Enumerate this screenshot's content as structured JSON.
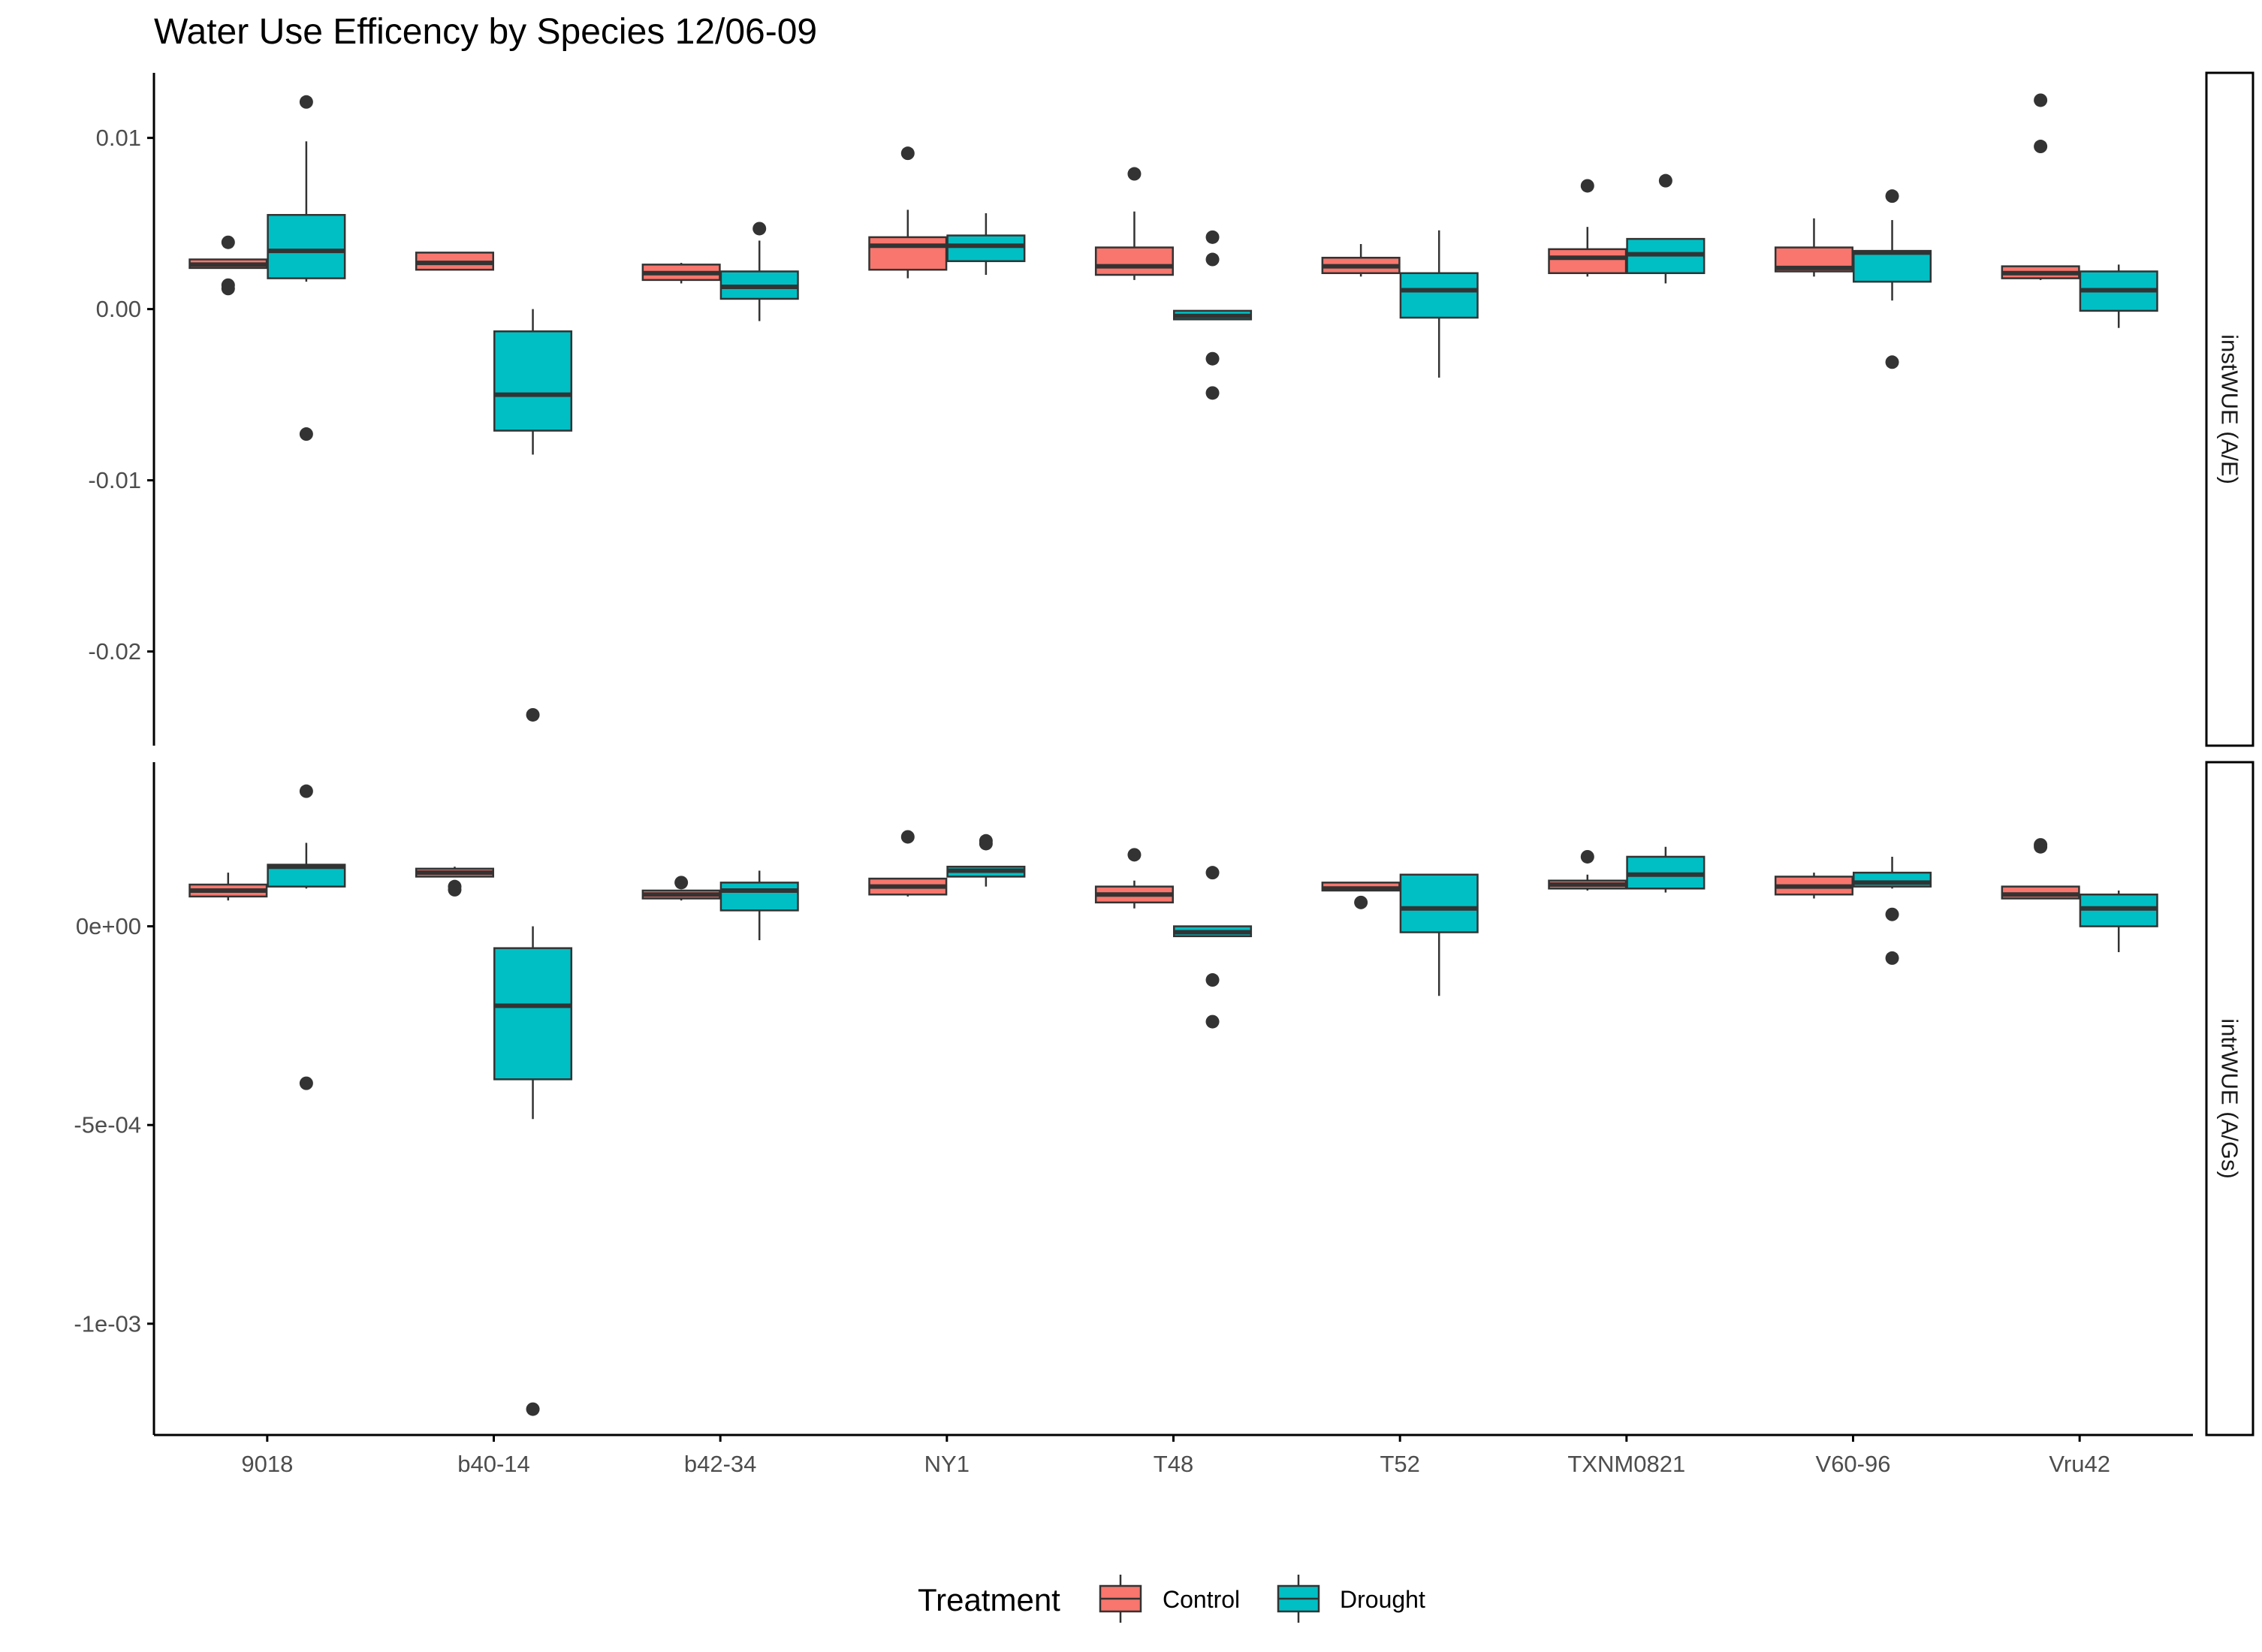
{
  "chart_data": {
    "type": "box",
    "title": "Water Use Efficency by Species 12/06-09",
    "xlabel": "",
    "ylabel": "",
    "categories": [
      "9018",
      "b40-14",
      "b42-34",
      "NY1",
      "T48",
      "T52",
      "TXNM0821",
      "V60-96",
      "Vru42"
    ],
    "legend": {
      "title": "Treatment",
      "position": "bottom",
      "entries": [
        {
          "name": "Control",
          "color": "#F8766D"
        },
        {
          "name": "Drought",
          "color": "#00BFC4"
        }
      ]
    },
    "grid": false,
    "panels": [
      {
        "strip": "instWUE (A/E)",
        "ylim": [
          -0.0255,
          0.0138
        ],
        "y_ticks": [
          {
            "value": 0.01,
            "label": "0.01"
          },
          {
            "value": 0.0,
            "label": "0.00"
          },
          {
            "value": -0.01,
            "label": "-0.01"
          },
          {
            "value": -0.02,
            "label": "-0.02"
          }
        ],
        "series": [
          {
            "name": "Control",
            "boxes": [
              {
                "category": "9018",
                "q1": 0.0024,
                "median": 0.0026,
                "q3": 0.0029,
                "whisker_low": 0.0024,
                "whisker_high": 0.0029,
                "outliers": [
                  0.0039,
                  0.0014,
                  0.0012
                ]
              },
              {
                "category": "b40-14",
                "q1": 0.0023,
                "median": 0.0027,
                "q3": 0.0033,
                "whisker_low": 0.0023,
                "whisker_high": 0.0033,
                "outliers": []
              },
              {
                "category": "b42-34",
                "q1": 0.0017,
                "median": 0.0021,
                "q3": 0.0026,
                "whisker_low": 0.0015,
                "whisker_high": 0.0027,
                "outliers": []
              },
              {
                "category": "NY1",
                "q1": 0.0023,
                "median": 0.0037,
                "q3": 0.0042,
                "whisker_low": 0.0018,
                "whisker_high": 0.0058,
                "outliers": [
                  0.0091
                ]
              },
              {
                "category": "T48",
                "q1": 0.002,
                "median": 0.0025,
                "q3": 0.0036,
                "whisker_low": 0.0017,
                "whisker_high": 0.0057,
                "outliers": [
                  0.0079
                ]
              },
              {
                "category": "T52",
                "q1": 0.0021,
                "median": 0.0025,
                "q3": 0.003,
                "whisker_low": 0.0019,
                "whisker_high": 0.0038,
                "outliers": []
              },
              {
                "category": "TXNM0821",
                "q1": 0.0021,
                "median": 0.003,
                "q3": 0.0035,
                "whisker_low": 0.0019,
                "whisker_high": 0.0048,
                "outliers": [
                  0.0072
                ]
              },
              {
                "category": "V60-96",
                "q1": 0.0022,
                "median": 0.0024,
                "q3": 0.0036,
                "whisker_low": 0.0019,
                "whisker_high": 0.0053,
                "outliers": []
              },
              {
                "category": "Vru42",
                "q1": 0.0018,
                "median": 0.0021,
                "q3": 0.0025,
                "whisker_low": 0.0017,
                "whisker_high": 0.0025,
                "outliers": [
                  0.0122,
                  0.0095
                ]
              }
            ]
          },
          {
            "name": "Drought",
            "boxes": [
              {
                "category": "9018",
                "q1": 0.0018,
                "median": 0.0034,
                "q3": 0.0055,
                "whisker_low": 0.0016,
                "whisker_high": 0.0098,
                "outliers": [
                  0.0121,
                  -0.0073
                ]
              },
              {
                "category": "b40-14",
                "q1": -0.0071,
                "median": -0.005,
                "q3": -0.0013,
                "whisker_low": -0.0085,
                "whisker_high": 0.0,
                "outliers": [
                  -0.0237
                ]
              },
              {
                "category": "b42-34",
                "q1": 0.0006,
                "median": 0.0013,
                "q3": 0.0022,
                "whisker_low": -0.0007,
                "whisker_high": 0.004,
                "outliers": [
                  0.0047
                ]
              },
              {
                "category": "NY1",
                "q1": 0.0028,
                "median": 0.0037,
                "q3": 0.0043,
                "whisker_low": 0.002,
                "whisker_high": 0.0056,
                "outliers": []
              },
              {
                "category": "T48",
                "q1": -0.0006,
                "median": -0.0004,
                "q3": -0.0001,
                "whisker_low": -0.0006,
                "whisker_high": -0.0001,
                "outliers": [
                  0.0042,
                  0.0029,
                  -0.0029,
                  -0.0049
                ]
              },
              {
                "category": "T52",
                "q1": -0.0005,
                "median": 0.0011,
                "q3": 0.0021,
                "whisker_low": -0.004,
                "whisker_high": 0.0046,
                "outliers": []
              },
              {
                "category": "TXNM0821",
                "q1": 0.0021,
                "median": 0.0032,
                "q3": 0.0041,
                "whisker_low": 0.0015,
                "whisker_high": 0.0041,
                "outliers": [
                  0.0075
                ]
              },
              {
                "category": "V60-96",
                "q1": 0.0016,
                "median": 0.0033,
                "q3": 0.0034,
                "whisker_low": 0.0005,
                "whisker_high": 0.0052,
                "outliers": [
                  0.0066,
                  -0.0031
                ]
              },
              {
                "category": "Vru42",
                "q1": -0.0001,
                "median": 0.0011,
                "q3": 0.0022,
                "whisker_low": -0.0011,
                "whisker_high": 0.0026,
                "outliers": []
              }
            ]
          }
        ]
      },
      {
        "strip": "intrWUE (A/Gs)",
        "ylim": [
          -0.00128,
          0.000413
        ],
        "y_ticks": [
          {
            "value": 0.0,
            "label": "0e+00"
          },
          {
            "value": -0.0005,
            "label": "-5e-04"
          },
          {
            "value": -0.001,
            "label": "-1e-03"
          }
        ],
        "series": [
          {
            "name": "Control",
            "boxes": [
              {
                "category": "9018",
                "q1": 7.5e-05,
                "median": 9e-05,
                "q3": 0.000105,
                "whisker_low": 6.5e-05,
                "whisker_high": 0.000135,
                "outliers": []
              },
              {
                "category": "b40-14",
                "q1": 0.000125,
                "median": 0.000135,
                "q3": 0.000145,
                "whisker_low": 0.000125,
                "whisker_high": 0.00015,
                "outliers": [
                  0.0001,
                  9.2e-05
                ]
              },
              {
                "category": "b42-34",
                "q1": 7e-05,
                "median": 8e-05,
                "q3": 9e-05,
                "whisker_low": 6.5e-05,
                "whisker_high": 9e-05,
                "outliers": [
                  0.00011
                ]
              },
              {
                "category": "NY1",
                "q1": 8e-05,
                "median": 0.0001,
                "q3": 0.00012,
                "whisker_low": 7.5e-05,
                "whisker_high": 0.00012,
                "outliers": [
                  0.000225
                ]
              },
              {
                "category": "T48",
                "q1": 6e-05,
                "median": 8e-05,
                "q3": 0.0001,
                "whisker_low": 4.5e-05,
                "whisker_high": 0.000115,
                "outliers": [
                  0.00018
                ]
              },
              {
                "category": "T52",
                "q1": 9e-05,
                "median": 9.5e-05,
                "q3": 0.00011,
                "whisker_low": 9e-05,
                "whisker_high": 0.00011,
                "outliers": [
                  6e-05
                ]
              },
              {
                "category": "TXNM0821",
                "q1": 9.5e-05,
                "median": 0.000105,
                "q3": 0.000115,
                "whisker_low": 9e-05,
                "whisker_high": 0.00013,
                "outliers": [
                  0.000175
                ]
              },
              {
                "category": "V60-96",
                "q1": 8e-05,
                "median": 0.0001,
                "q3": 0.000125,
                "whisker_low": 7e-05,
                "whisker_high": 0.000135,
                "outliers": []
              },
              {
                "category": "Vru42",
                "q1": 7e-05,
                "median": 8e-05,
                "q3": 0.0001,
                "whisker_low": 7e-05,
                "whisker_high": 0.0001,
                "outliers": [
                  0.000205,
                  0.0002
                ]
              }
            ]
          },
          {
            "name": "Drought",
            "boxes": [
              {
                "category": "9018",
                "q1": 0.0001,
                "median": 0.00015,
                "q3": 0.000155,
                "whisker_low": 9.5e-05,
                "whisker_high": 0.00021,
                "outliers": [
                  0.00034,
                  -0.000395
                ]
              },
              {
                "category": "b40-14",
                "q1": -0.000385,
                "median": -0.0002,
                "q3": -5.5e-05,
                "whisker_low": -0.000485,
                "whisker_high": 0.0,
                "outliers": [
                  -0.001215
                ]
              },
              {
                "category": "b42-34",
                "q1": 4e-05,
                "median": 9e-05,
                "q3": 0.00011,
                "whisker_low": -3.5e-05,
                "whisker_high": 0.00014,
                "outliers": []
              },
              {
                "category": "NY1",
                "q1": 0.000125,
                "median": 0.00014,
                "q3": 0.00015,
                "whisker_low": 0.0001,
                "whisker_high": 0.00015,
                "outliers": [
                  0.000215,
                  0.000208
                ]
              },
              {
                "category": "T48",
                "q1": -2.5e-05,
                "median": -1.5e-05,
                "q3": 0.0,
                "whisker_low": -2.5e-05,
                "whisker_high": 0.0,
                "outliers": [
                  0.000135,
                  -0.000135,
                  -0.00024
                ]
              },
              {
                "category": "T52",
                "q1": -1.5e-05,
                "median": 4.5e-05,
                "q3": 0.00013,
                "whisker_low": -0.000175,
                "whisker_high": 0.00013,
                "outliers": []
              },
              {
                "category": "TXNM0821",
                "q1": 9.5e-05,
                "median": 0.00013,
                "q3": 0.000175,
                "whisker_low": 8.5e-05,
                "whisker_high": 0.0002,
                "outliers": []
              },
              {
                "category": "V60-96",
                "q1": 0.0001,
                "median": 0.00011,
                "q3": 0.000135,
                "whisker_low": 9.5e-05,
                "whisker_high": 0.000175,
                "outliers": [
                  3e-05,
                  -8e-05
                ]
              },
              {
                "category": "Vru42",
                "q1": 0.0,
                "median": 4.5e-05,
                "q3": 8e-05,
                "whisker_low": -6.5e-05,
                "whisker_high": 9e-05,
                "outliers": []
              }
            ]
          }
        ]
      }
    ]
  }
}
